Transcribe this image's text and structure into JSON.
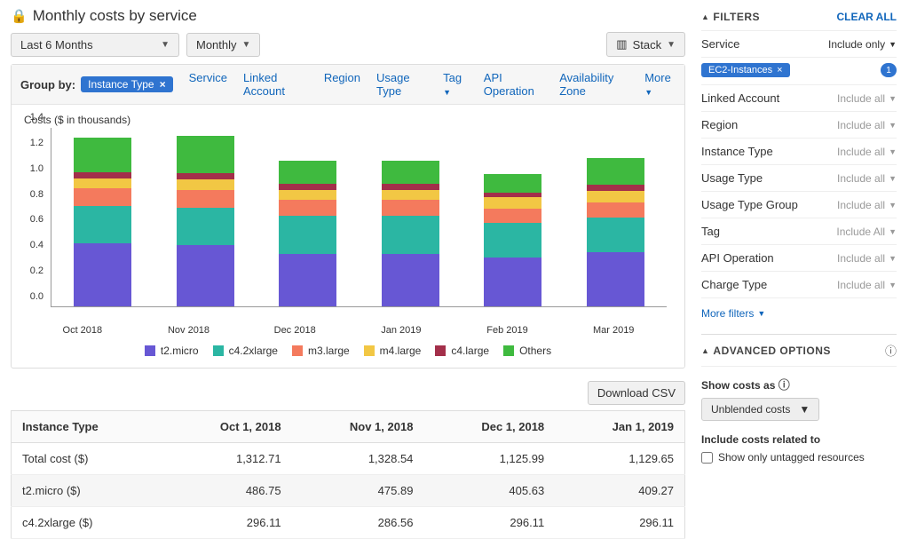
{
  "title": "Monthly costs by service",
  "range_selector": "Last 6 Months",
  "granularity": "Monthly",
  "stack_label": "Stack",
  "groupby_label": "Group by:",
  "groupby_active": "Instance Type",
  "groupby_links": [
    "Service",
    "Linked Account",
    "Region",
    "Usage Type",
    "Tag",
    "API Operation",
    "Availability Zone"
  ],
  "groupby_more": "More",
  "download_label": "Download CSV",
  "chart": {
    "ylabel": "Costs ($ in thousands)",
    "ymax": 1.4,
    "yticks": [
      0.0,
      0.2,
      0.4,
      0.6,
      0.8,
      1.0,
      1.2,
      1.4
    ],
    "categories": [
      "Oct 2018",
      "Nov 2018",
      "Dec 2018",
      "Jan 2019",
      "Feb 2019",
      "Mar 2019"
    ],
    "series": [
      {
        "name": "t2.micro",
        "color": "#6757d4"
      },
      {
        "name": "c4.2xlarge",
        "color": "#2bb6a3"
      },
      {
        "name": "m3.large",
        "color": "#f47a5d"
      },
      {
        "name": "m4.large",
        "color": "#f2c744"
      },
      {
        "name": "c4.large",
        "color": "#a32f4a"
      },
      {
        "name": "Others",
        "color": "#3fba3f"
      }
    ],
    "stacks": [
      [
        0.49,
        0.29,
        0.14,
        0.08,
        0.05,
        0.27
      ],
      [
        0.48,
        0.29,
        0.14,
        0.08,
        0.05,
        0.29
      ],
      [
        0.41,
        0.3,
        0.12,
        0.08,
        0.05,
        0.18
      ],
      [
        0.41,
        0.3,
        0.12,
        0.08,
        0.05,
        0.18
      ],
      [
        0.38,
        0.27,
        0.11,
        0.09,
        0.04,
        0.14
      ],
      [
        0.42,
        0.27,
        0.12,
        0.09,
        0.05,
        0.21
      ]
    ]
  },
  "table": {
    "headers": [
      "Instance Type",
      "Oct 1, 2018",
      "Nov 1, 2018",
      "Dec 1, 2018",
      "Jan 1, 2019"
    ],
    "rows": [
      [
        "Total cost ($)",
        "1,312.71",
        "1,328.54",
        "1,125.99",
        "1,129.65"
      ],
      [
        "t2.micro ($)",
        "486.75",
        "475.89",
        "405.63",
        "409.27"
      ],
      [
        "c4.2xlarge ($)",
        "296.11",
        "286.56",
        "296.11",
        "296.11"
      ]
    ]
  },
  "filters": {
    "title": "FILTERS",
    "clear": "CLEAR ALL",
    "service_label": "Service",
    "service_mode": "Include only",
    "service_chip": "EC2-Instances",
    "service_count": "1",
    "rows": [
      {
        "name": "Linked Account",
        "val": "Include all"
      },
      {
        "name": "Region",
        "val": "Include all"
      },
      {
        "name": "Instance Type",
        "val": "Include all"
      },
      {
        "name": "Usage Type",
        "val": "Include all"
      },
      {
        "name": "Usage Type Group",
        "val": "Include all"
      },
      {
        "name": "Tag",
        "val": "Include All"
      },
      {
        "name": "API Operation",
        "val": "Include all"
      },
      {
        "name": "Charge Type",
        "val": "Include all"
      }
    ],
    "more": "More filters"
  },
  "advanced": {
    "title": "ADVANCED OPTIONS",
    "show_costs_label": "Show costs as",
    "show_costs_value": "Unblended costs",
    "include_label": "Include costs related to",
    "checkbox_label": "Show only untagged resources"
  }
}
